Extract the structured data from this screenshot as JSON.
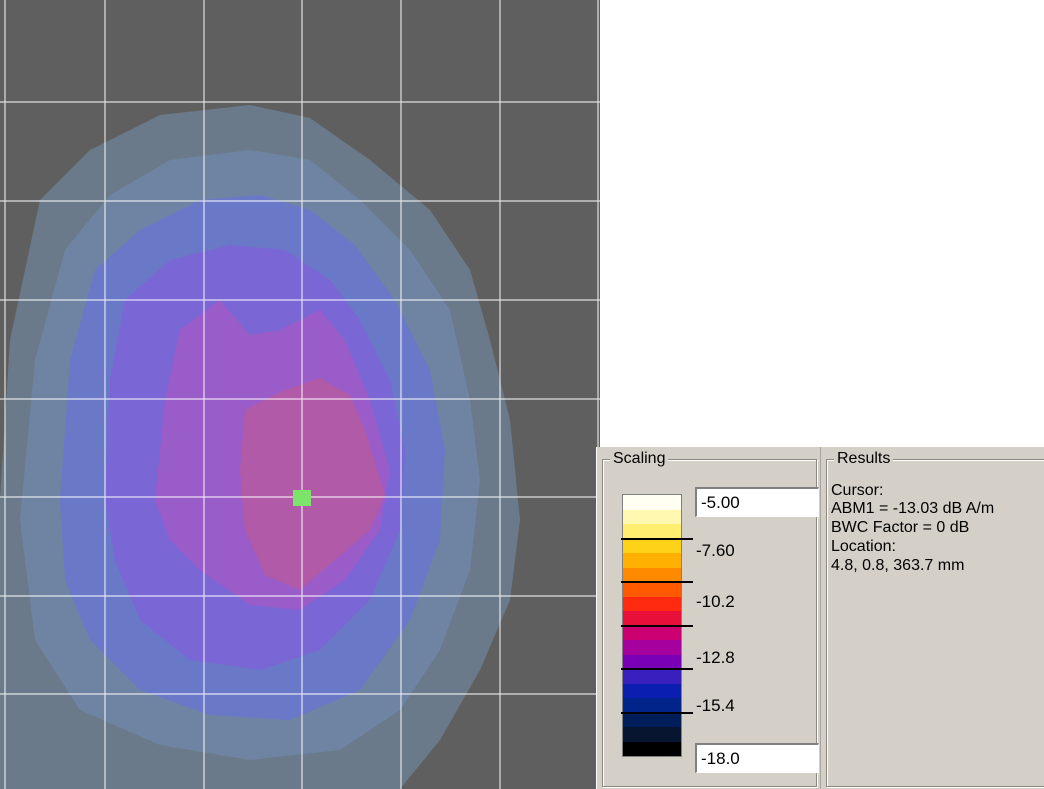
{
  "colors": {
    "background": "#5f5f5f",
    "grid": "#ffffff",
    "cursor_marker": "#7ce36b",
    "contour_levels": [
      "#6a7a8a",
      "#6f84a3",
      "#6a78c8",
      "#7a66d4",
      "#9a5cc8",
      "#b05aa8"
    ],
    "colorbar": [
      "#fffff2",
      "#fff8b0",
      "#ffee70",
      "#ffd21a",
      "#ffb000",
      "#ff8a00",
      "#ff5a00",
      "#ff2a10",
      "#e8103a",
      "#cc0070",
      "#a6009e",
      "#7a00b8",
      "#3a1fbf",
      "#0a1fb0",
      "#00248a",
      "#001e5a",
      "#071530",
      "#000000"
    ]
  },
  "scaling": {
    "title": "Scaling",
    "max_value": "-5.00",
    "min_value": "-18.0",
    "tick_labels": [
      "-7.60",
      "-10.2",
      "-12.8",
      "-15.4"
    ]
  },
  "results": {
    "title": "Results",
    "cursor_label": "Cursor:",
    "abm1": "ABM1 = -13.03 dB A/m",
    "bwc_factor": "BWC Factor = 0 dB",
    "location_label": "Location:",
    "location_value": "4.8, 0.8, 363.7 mm"
  }
}
